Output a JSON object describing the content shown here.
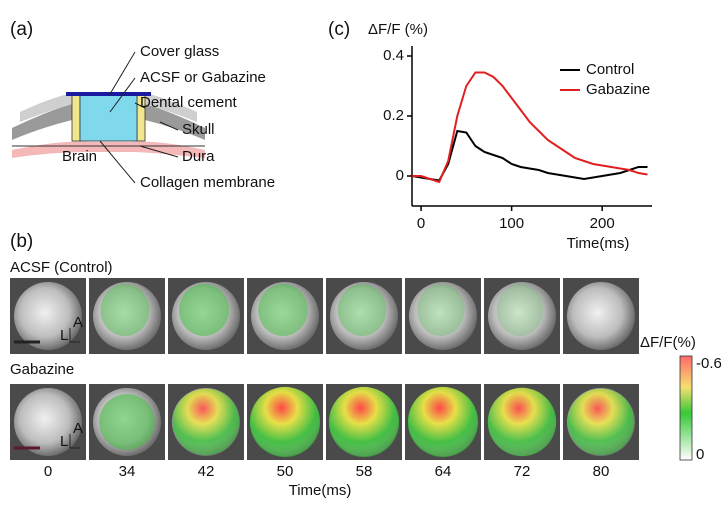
{
  "panels": {
    "a": "(a)",
    "b": "(b)",
    "c": "(c)"
  },
  "diagram": {
    "labels": [
      "Cover glass",
      "ACSF or Gabazine",
      "Dental cement",
      "Skull",
      "Dura",
      "Brain",
      "Collagen membrane"
    ]
  },
  "imaging": {
    "rows": [
      "ACSF (Control)",
      "Gabazine"
    ],
    "frame_times": [
      "0",
      "34",
      "42",
      "50",
      "58",
      "64",
      "72",
      "80"
    ],
    "time_label": "Time(ms)",
    "orientation": [
      "A",
      "L"
    ],
    "colorbar": {
      "title": "ΔF/F(%)",
      "top": "-0.6",
      "bottom": "0"
    }
  },
  "chart_data": {
    "type": "line",
    "ylabel": "ΔF/F (%)",
    "xlabel": "Time(ms)",
    "x": [
      -10,
      0,
      10,
      20,
      30,
      40,
      50,
      60,
      70,
      80,
      90,
      100,
      110,
      120,
      130,
      140,
      150,
      160,
      170,
      180,
      190,
      200,
      210,
      220,
      230,
      240,
      250
    ],
    "series": [
      {
        "name": "Control",
        "color": "#000000",
        "values": [
          0,
          -0.005,
          -0.01,
          -0.015,
          0.04,
          0.15,
          0.145,
          0.1,
          0.08,
          0.07,
          0.06,
          0.04,
          0.03,
          0.025,
          0.02,
          0.01,
          0.005,
          0,
          -0.005,
          -0.01,
          -0.005,
          0,
          0.005,
          0.01,
          0.02,
          0.03,
          0.03
        ]
      },
      {
        "name": "Gabazine",
        "color": "#e02020",
        "values": [
          0,
          0,
          -0.01,
          -0.02,
          0.05,
          0.2,
          0.3,
          0.345,
          0.345,
          0.33,
          0.3,
          0.26,
          0.22,
          0.18,
          0.15,
          0.12,
          0.1,
          0.08,
          0.06,
          0.05,
          0.04,
          0.035,
          0.03,
          0.025,
          0.02,
          0.01,
          0.005
        ]
      }
    ],
    "xlim": [
      -10,
      255
    ],
    "ylim": [
      -0.1,
      0.42
    ],
    "xticks": [
      0,
      100,
      200
    ],
    "yticks": [
      0,
      0.2,
      0.4
    ],
    "legend": "upper right"
  }
}
